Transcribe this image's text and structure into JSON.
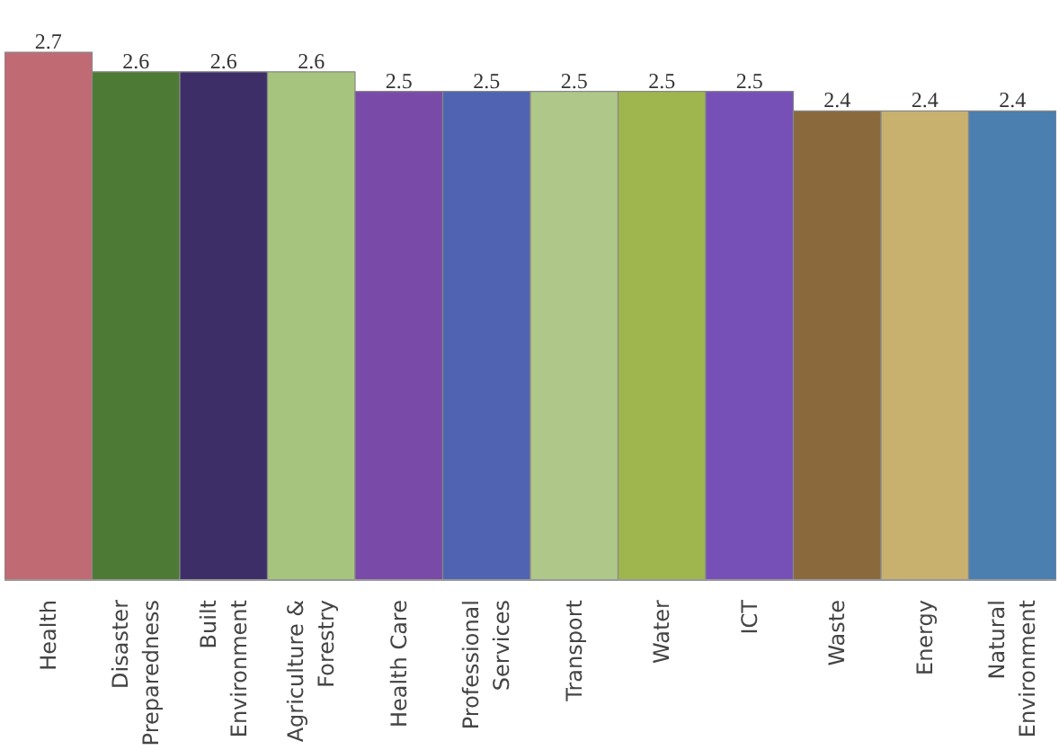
{
  "chart_data": {
    "type": "bar",
    "categories": [
      "Health",
      "Disaster\nPreparedness",
      "Built\nEnvironment",
      "Agriculture &\nForestry",
      "Health Care",
      "Professional\nServices",
      "Transport",
      "Water",
      "ICT",
      "Waste",
      "Energy",
      "Natural\nEnvironment"
    ],
    "values": [
      2.7,
      2.6,
      2.6,
      2.6,
      2.5,
      2.5,
      2.5,
      2.5,
      2.5,
      2.4,
      2.4,
      2.4
    ],
    "colors": [
      "#c06a74",
      "#4d7a35",
      "#3e2e68",
      "#a6c47e",
      "#7a4aa8",
      "#4f63b2",
      "#b0c78a",
      "#9fb64e",
      "#7650b6",
      "#8a6a3c",
      "#c8b06e",
      "#4a7fb0"
    ],
    "data_labels": true
  }
}
